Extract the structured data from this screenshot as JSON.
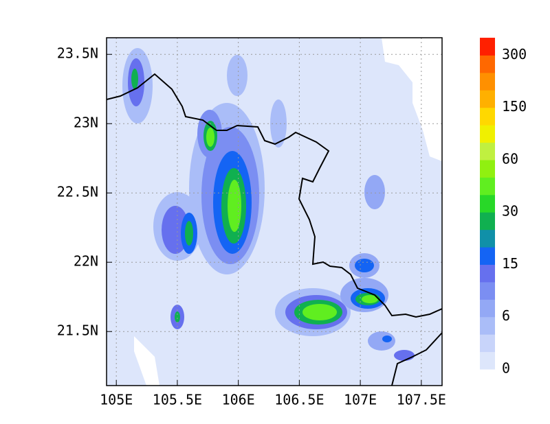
{
  "map": {
    "xlim": [
      104.92,
      107.67
    ],
    "ylim": [
      21.11,
      23.62
    ],
    "xticks": [
      {
        "value": 105,
        "label": "105E"
      },
      {
        "value": 105.5,
        "label": "105.5E"
      },
      {
        "value": 106,
        "label": "106E"
      },
      {
        "value": 106.5,
        "label": "106.5E"
      },
      {
        "value": 107,
        "label": "107E"
      },
      {
        "value": 107.5,
        "label": "107.5E"
      }
    ],
    "yticks": [
      {
        "value": 21.5,
        "label": "21.5N"
      },
      {
        "value": 22,
        "label": "22N"
      },
      {
        "value": 22.5,
        "label": "22.5N"
      },
      {
        "value": 23,
        "label": "23N"
      },
      {
        "value": 23.5,
        "label": "23.5N"
      }
    ],
    "grid": true,
    "colorbar": {
      "colors": [
        "#dde6fb",
        "#c8d4fa",
        "#aabdf8",
        "#93a8f5",
        "#7b8ef2",
        "#6670ee",
        "#1464f4",
        "#1090a8",
        "#10b050",
        "#28d828",
        "#60ee20",
        "#90f010",
        "#c0f040",
        "#f0f000",
        "#ffd800",
        "#ffb000",
        "#ff9000",
        "#ff6800",
        "#ff2000"
      ],
      "ticks": [
        0,
        6,
        15,
        30,
        60,
        150,
        300
      ]
    }
  }
}
